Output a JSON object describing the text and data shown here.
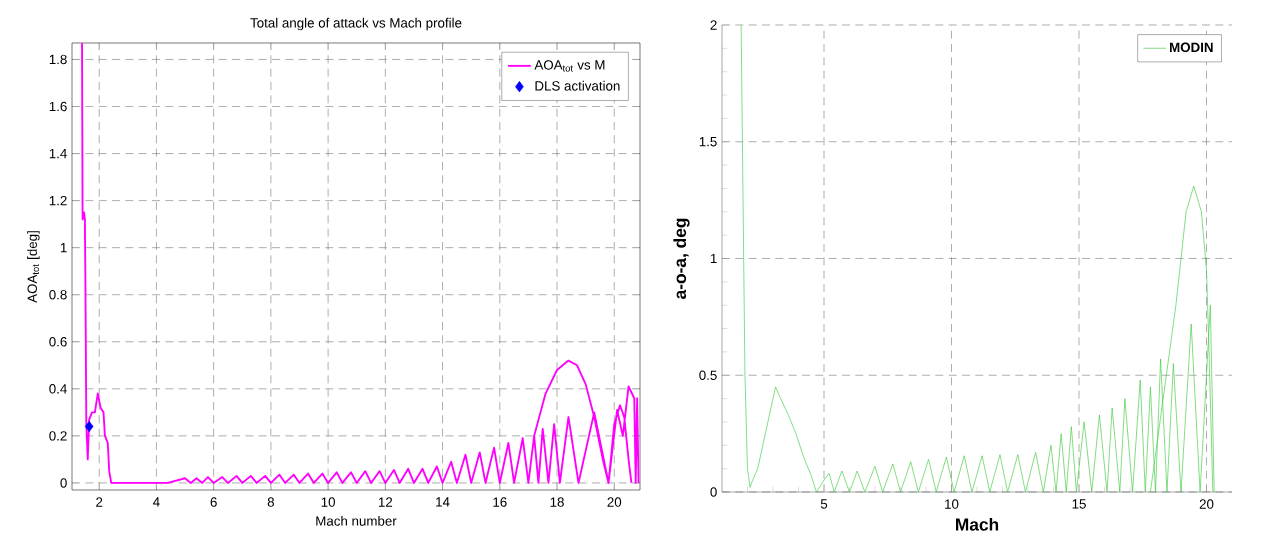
{
  "chart_data": [
    {
      "type": "line",
      "title": "Total angle of attack vs Mach profile",
      "xlabel": "Mach number",
      "ylabel": "AOA$_{tot}$ [deg]",
      "xlim": [
        1.05,
        20.9
      ],
      "ylim": [
        -0.03,
        1.87
      ],
      "xticks": [
        2,
        4,
        6,
        8,
        10,
        12,
        14,
        16,
        18,
        20
      ],
      "yticks": [
        0,
        0.2,
        0.4,
        0.6,
        0.8,
        1,
        1.2,
        1.4,
        1.6,
        1.8
      ],
      "grid": true,
      "legend": "top right",
      "series": [
        {
          "name": "AOA$_{tot}$ vs M",
          "color": "#ff00ff",
          "x": [
            1.4,
            1.42,
            1.47,
            1.5,
            1.52,
            1.55,
            1.6,
            1.65,
            1.75,
            1.85,
            1.95,
            2.05,
            2.15,
            2.2,
            2.3,
            2.35,
            2.42,
            4.4,
            4.7,
            5.0,
            5.2,
            5.4,
            5.6,
            5.8,
            6.0,
            6.3,
            6.5,
            6.8,
            7.0,
            7.3,
            7.5,
            7.8,
            8.0,
            8.3,
            8.5,
            8.8,
            9.0,
            9.3,
            9.5,
            9.8,
            10.0,
            10.3,
            10.5,
            10.8,
            11.0,
            11.3,
            11.5,
            11.8,
            12.0,
            12.3,
            12.5,
            12.8,
            13.0,
            13.3,
            13.5,
            13.8,
            14.0,
            14.3,
            14.5,
            14.8,
            15.0,
            15.3,
            15.5,
            15.8,
            16.0,
            16.3,
            16.5,
            16.8,
            17.0,
            17.2,
            17.35,
            17.5,
            17.7,
            17.9,
            18.1,
            18.4,
            18.75,
            19.3,
            19.8,
            20.1,
            20.3,
            20.5,
            20.7,
            20.75,
            20.8,
            20.85,
            null,
            17.2,
            17.6,
            18.0,
            18.4,
            18.7,
            19.0,
            19.3,
            19.6,
            19.8,
            20.0,
            20.2,
            20.35,
            20.5,
            20.6
          ],
          "values": [
            1.87,
            1.12,
            1.15,
            1.12,
            0.82,
            0.25,
            0.1,
            0.27,
            0.3,
            0.3,
            0.38,
            0.32,
            0.3,
            0.2,
            0.17,
            0.05,
            0,
            0,
            0.01,
            0.02,
            0,
            0.02,
            0,
            0.025,
            0,
            0.025,
            0,
            0.03,
            0,
            0.03,
            0,
            0.03,
            0,
            0.035,
            0,
            0.035,
            0,
            0.04,
            0,
            0.04,
            0,
            0.045,
            0,
            0.045,
            0,
            0.05,
            0,
            0.05,
            0,
            0.055,
            0,
            0.06,
            0,
            0.06,
            0,
            0.07,
            0,
            0.09,
            0,
            0.12,
            0,
            0.13,
            0,
            0.15,
            0,
            0.17,
            0,
            0.19,
            0,
            0.2,
            0,
            0.23,
            0,
            0.25,
            0,
            0.28,
            0,
            0.3,
            0,
            0.31,
            0.2,
            0.41,
            0.36,
            0,
            0.36,
            0,
            null,
            0.2,
            0.38,
            0.48,
            0.52,
            0.5,
            0.42,
            0.28,
            0.1,
            0,
            0.25,
            0.33,
            0.28,
            0.1,
            0
          ]
        },
        {
          "name": "DLS activation",
          "color": "#0000ff",
          "type": "scatter",
          "marker": "diamond",
          "x": [
            1.65
          ],
          "values": [
            0.24
          ]
        }
      ]
    },
    {
      "type": "line",
      "xlabel": "Mach",
      "ylabel": "a-o-a, deg",
      "xlim": [
        1,
        21
      ],
      "ylim": [
        0,
        2
      ],
      "xticks": [
        {
          "value": 2,
          "label": null
        },
        {
          "value": 3,
          "label": null
        },
        {
          "value": 4,
          "label": null
        },
        5,
        {
          "value": 6,
          "label": null
        },
        {
          "value": 7,
          "label": null
        },
        {
          "value": 8,
          "label": null
        },
        {
          "value": 9,
          "label": null
        },
        10,
        {
          "value": 11,
          "label": null
        },
        {
          "value": 12,
          "label": null
        },
        {
          "value": 13,
          "label": null
        },
        {
          "value": 14,
          "label": null
        },
        15,
        {
          "value": 16,
          "label": null
        },
        {
          "value": 17,
          "label": null
        },
        {
          "value": 18,
          "label": null
        },
        {
          "value": 19,
          "label": null
        },
        20
      ],
      "yticks": [
        0,
        {
          "value": 0.1,
          "label": null
        },
        {
          "value": 0.2,
          "label": null
        },
        {
          "value": 0.3,
          "label": null
        },
        {
          "value": 0.4,
          "label": null
        },
        0.5,
        {
          "value": 0.6,
          "label": null
        },
        {
          "value": 0.7,
          "label": null
        },
        {
          "value": 0.8,
          "label": null
        },
        {
          "value": 0.9,
          "label": null
        },
        1,
        {
          "value": 1.1,
          "label": null
        },
        {
          "value": 1.2,
          "label": null
        },
        {
          "value": 1.3,
          "label": null
        },
        {
          "value": 1.4,
          "label": null
        },
        1.5,
        {
          "value": 1.6,
          "label": null
        },
        {
          "value": 1.7,
          "label": null
        },
        {
          "value": 1.8,
          "label": null
        },
        {
          "value": 1.9,
          "label": null
        },
        2
      ],
      "grid": true,
      "legend": "top right",
      "series": [
        {
          "name": "MODIN",
          "color": "#44cc44",
          "x": [
            1.75,
            1.8,
            1.85,
            1.9,
            2.0,
            2.1,
            2.2,
            2.4,
            2.6,
            2.8,
            3.0,
            3.1,
            3.3,
            3.6,
            3.9,
            4.2,
            4.5,
            4.7,
            5.0,
            5.2,
            5.4,
            5.7,
            6.0,
            6.3,
            6.6,
            7.0,
            7.3,
            7.7,
            8.0,
            8.4,
            8.7,
            9.1,
            9.4,
            9.8,
            10.1,
            10.5,
            10.8,
            11.2,
            11.5,
            11.9,
            12.2,
            12.6,
            12.9,
            13.3,
            13.6,
            13.9,
            14.1,
            14.3,
            14.5,
            14.7,
            14.9,
            15.2,
            15.5,
            15.8,
            16.1,
            16.3,
            16.6,
            16.8,
            17.1,
            17.4,
            17.6,
            17.8,
            18.0,
            18.2,
            18.45,
            18.7,
            19.0,
            19.4,
            19.75,
            20.0,
            20.15,
            20.3,
            null,
            17.8,
            18.3,
            18.8,
            19.2,
            19.5,
            19.8,
            20.0,
            20.1,
            20.2,
            20.25
          ],
          "values": [
            2.0,
            1.5,
            1.0,
            0.5,
            0.1,
            0.02,
            0.05,
            0.1,
            0.2,
            0.3,
            0.4,
            0.45,
            0.4,
            0.33,
            0.25,
            0.15,
            0.07,
            0,
            0.05,
            0.08,
            0,
            0.09,
            0,
            0.09,
            0,
            0.11,
            0,
            0.12,
            0,
            0.13,
            0,
            0.14,
            0,
            0.15,
            0,
            0.155,
            0,
            0.155,
            0,
            0.16,
            0,
            0.16,
            0,
            0.17,
            0,
            0.2,
            0,
            0.25,
            0,
            0.28,
            0,
            0.3,
            0,
            0.33,
            0,
            0.36,
            0,
            0.4,
            0,
            0.48,
            0,
            0.45,
            0,
            0.57,
            0,
            0.55,
            0,
            0.72,
            0,
            0.5,
            0.8,
            0,
            null,
            0,
            0.4,
            0.8,
            1.2,
            1.31,
            1.2,
            0.95,
            0.6,
            0.2,
            0
          ]
        }
      ]
    }
  ]
}
